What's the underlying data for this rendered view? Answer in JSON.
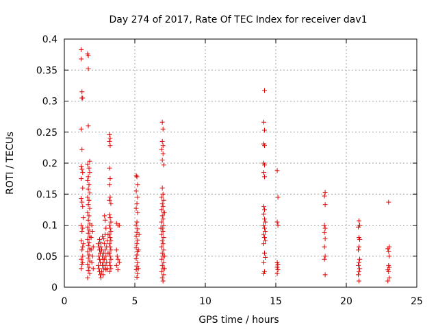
{
  "chart_data": {
    "type": "scatter",
    "title": "Day 274 of 2017, Rate Of TEC Index for receiver dav1",
    "xlabel": "GPS time / hours",
    "ylabel": "ROTI / TECUs",
    "xlim": [
      0,
      25
    ],
    "ylim": [
      0,
      0.4
    ],
    "xticks": [
      0,
      5,
      10,
      15,
      20,
      25
    ],
    "xtick_labels": [
      "0",
      "5",
      "10",
      "15",
      "20",
      "25"
    ],
    "yticks": [
      0,
      0.05,
      0.1,
      0.15,
      0.2,
      0.25,
      0.3,
      0.35,
      0.4
    ],
    "ytick_labels": [
      "0",
      "0.05",
      "0.1",
      "0.15",
      "0.2",
      "0.25",
      "0.3",
      "0.35",
      "0.4"
    ],
    "grid": true,
    "marker": "+",
    "color": "#e00000",
    "series": [
      {
        "points": [
          [
            1.2,
            0.383
          ],
          [
            1.2,
            0.368
          ],
          [
            1.25,
            0.315
          ],
          [
            1.25,
            0.305
          ],
          [
            1.3,
            0.305
          ],
          [
            1.2,
            0.255
          ],
          [
            1.25,
            0.222
          ],
          [
            1.2,
            0.195
          ],
          [
            1.25,
            0.19
          ],
          [
            1.3,
            0.185
          ],
          [
            1.2,
            0.175
          ],
          [
            1.3,
            0.16
          ],
          [
            1.2,
            0.143
          ],
          [
            1.25,
            0.137
          ],
          [
            1.3,
            0.13
          ],
          [
            1.2,
            0.1
          ],
          [
            1.3,
            0.095
          ],
          [
            1.25,
            0.09
          ],
          [
            1.2,
            0.075
          ],
          [
            1.3,
            0.065
          ],
          [
            1.25,
            0.06
          ],
          [
            1.2,
            0.045
          ],
          [
            1.3,
            0.04
          ],
          [
            1.25,
            0.037
          ],
          [
            1.2,
            0.03
          ],
          [
            1.3,
            0.05
          ],
          [
            1.35,
            0.112
          ],
          [
            1.35,
            0.07
          ],
          [
            1.65,
            0.376
          ],
          [
            1.7,
            0.373
          ],
          [
            1.7,
            0.352
          ],
          [
            1.7,
            0.26
          ],
          [
            1.8,
            0.203
          ],
          [
            1.65,
            0.198
          ],
          [
            1.75,
            0.192
          ],
          [
            1.8,
            0.185
          ],
          [
            1.7,
            0.178
          ],
          [
            1.65,
            0.172
          ],
          [
            1.75,
            0.165
          ],
          [
            1.7,
            0.158
          ],
          [
            1.8,
            0.152
          ],
          [
            1.65,
            0.145
          ],
          [
            1.75,
            0.14
          ],
          [
            1.7,
            0.133
          ],
          [
            1.8,
            0.127
          ],
          [
            1.65,
            0.12
          ],
          [
            1.75,
            0.115
          ],
          [
            1.7,
            0.108
          ],
          [
            1.8,
            0.102
          ],
          [
            1.65,
            0.097
          ],
          [
            1.75,
            0.092
          ],
          [
            1.7,
            0.087
          ],
          [
            1.8,
            0.082
          ],
          [
            1.65,
            0.077
          ],
          [
            1.75,
            0.072
          ],
          [
            1.7,
            0.067
          ],
          [
            1.8,
            0.062
          ],
          [
            1.65,
            0.057
          ],
          [
            1.75,
            0.052
          ],
          [
            1.7,
            0.047
          ],
          [
            1.8,
            0.042
          ],
          [
            1.65,
            0.037
          ],
          [
            1.75,
            0.032
          ],
          [
            1.7,
            0.027
          ],
          [
            1.8,
            0.022
          ],
          [
            1.65,
            0.015
          ],
          [
            1.9,
            0.06
          ],
          [
            1.9,
            0.08
          ],
          [
            1.95,
            0.1
          ],
          [
            2.0,
            0.09
          ],
          [
            2.0,
            0.05
          ],
          [
            1.95,
            0.04
          ],
          [
            2.05,
            0.03
          ],
          [
            2.05,
            0.065
          ],
          [
            2.4,
            0.07
          ],
          [
            2.45,
            0.065
          ],
          [
            2.5,
            0.06
          ],
          [
            2.55,
            0.055
          ],
          [
            2.45,
            0.05
          ],
          [
            2.5,
            0.045
          ],
          [
            2.55,
            0.04
          ],
          [
            2.4,
            0.035
          ],
          [
            2.45,
            0.03
          ],
          [
            2.5,
            0.025
          ],
          [
            2.55,
            0.02
          ],
          [
            2.6,
            0.072
          ],
          [
            2.65,
            0.06
          ],
          [
            2.7,
            0.05
          ],
          [
            2.75,
            0.04
          ],
          [
            2.8,
            0.03
          ],
          [
            2.65,
            0.025
          ],
          [
            2.7,
            0.035
          ],
          [
            2.75,
            0.045
          ],
          [
            2.8,
            0.055
          ],
          [
            2.6,
            0.065
          ],
          [
            2.85,
            0.07
          ],
          [
            2.9,
            0.06
          ],
          [
            2.95,
            0.05
          ],
          [
            2.85,
            0.045
          ],
          [
            2.9,
            0.035
          ],
          [
            2.95,
            0.028
          ],
          [
            3.0,
            0.04
          ],
          [
            2.9,
            0.085
          ],
          [
            2.95,
            0.095
          ],
          [
            2.85,
            0.115
          ],
          [
            2.9,
            0.108
          ],
          [
            2.7,
            0.082
          ],
          [
            2.8,
            0.078
          ],
          [
            2.75,
            0.02
          ],
          [
            3.0,
            0.065
          ],
          [
            3.05,
            0.075
          ],
          [
            3.1,
            0.085
          ],
          [
            3.1,
            0.055
          ],
          [
            3.05,
            0.03
          ],
          [
            2.6,
            0.015
          ],
          [
            2.5,
            0.077
          ],
          [
            3.2,
            0.246
          ],
          [
            3.25,
            0.24
          ],
          [
            3.2,
            0.235
          ],
          [
            3.25,
            0.228
          ],
          [
            3.2,
            0.192
          ],
          [
            3.25,
            0.175
          ],
          [
            3.2,
            0.165
          ],
          [
            3.25,
            0.145
          ],
          [
            3.2,
            0.14
          ],
          [
            3.3,
            0.135
          ],
          [
            3.2,
            0.117
          ],
          [
            3.25,
            0.112
          ],
          [
            3.3,
            0.105
          ],
          [
            3.2,
            0.1
          ],
          [
            3.25,
            0.095
          ],
          [
            3.3,
            0.09
          ],
          [
            3.2,
            0.085
          ],
          [
            3.25,
            0.08
          ],
          [
            3.3,
            0.075
          ],
          [
            3.2,
            0.07
          ],
          [
            3.25,
            0.065
          ],
          [
            3.3,
            0.06
          ],
          [
            3.2,
            0.055
          ],
          [
            3.25,
            0.05
          ],
          [
            3.3,
            0.045
          ],
          [
            3.2,
            0.04
          ],
          [
            3.25,
            0.035
          ],
          [
            3.3,
            0.03
          ],
          [
            3.2,
            0.025
          ],
          [
            3.7,
            0.103
          ],
          [
            3.8,
            0.1
          ],
          [
            3.9,
            0.1
          ],
          [
            3.7,
            0.06
          ],
          [
            3.75,
            0.05
          ],
          [
            3.8,
            0.045
          ],
          [
            3.7,
            0.035
          ],
          [
            3.8,
            0.028
          ],
          [
            3.9,
            0.04
          ],
          [
            5.1,
            0.18
          ],
          [
            5.15,
            0.178
          ],
          [
            5.2,
            0.165
          ],
          [
            5.1,
            0.155
          ],
          [
            5.2,
            0.145
          ],
          [
            5.15,
            0.135
          ],
          [
            5.1,
            0.127
          ],
          [
            5.2,
            0.12
          ],
          [
            5.15,
            0.105
          ],
          [
            5.1,
            0.1
          ],
          [
            5.2,
            0.094
          ],
          [
            5.15,
            0.088
          ],
          [
            5.1,
            0.082
          ],
          [
            5.2,
            0.076
          ],
          [
            5.15,
            0.07
          ],
          [
            5.1,
            0.064
          ],
          [
            5.2,
            0.058
          ],
          [
            5.15,
            0.052
          ],
          [
            5.1,
            0.046
          ],
          [
            5.2,
            0.04
          ],
          [
            5.15,
            0.034
          ],
          [
            5.1,
            0.028
          ],
          [
            5.2,
            0.022
          ],
          [
            5.15,
            0.016
          ],
          [
            5.25,
            0.03
          ],
          [
            5.25,
            0.06
          ],
          [
            5.3,
            0.085
          ],
          [
            6.95,
            0.266
          ],
          [
            7.0,
            0.255
          ],
          [
            6.95,
            0.235
          ],
          [
            7.0,
            0.228
          ],
          [
            6.9,
            0.222
          ],
          [
            7.0,
            0.215
          ],
          [
            6.95,
            0.205
          ],
          [
            7.05,
            0.197
          ],
          [
            6.95,
            0.16
          ],
          [
            7.0,
            0.15
          ],
          [
            6.9,
            0.145
          ],
          [
            7.05,
            0.14
          ],
          [
            6.95,
            0.135
          ],
          [
            7.0,
            0.13
          ],
          [
            6.9,
            0.125
          ],
          [
            7.05,
            0.12
          ],
          [
            6.95,
            0.115
          ],
          [
            7.0,
            0.11
          ],
          [
            6.9,
            0.105
          ],
          [
            7.05,
            0.1
          ],
          [
            6.95,
            0.095
          ],
          [
            7.0,
            0.09
          ],
          [
            6.9,
            0.085
          ],
          [
            7.05,
            0.08
          ],
          [
            6.95,
            0.075
          ],
          [
            7.0,
            0.07
          ],
          [
            6.9,
            0.065
          ],
          [
            7.05,
            0.06
          ],
          [
            6.95,
            0.055
          ],
          [
            7.0,
            0.05
          ],
          [
            6.9,
            0.045
          ],
          [
            7.05,
            0.04
          ],
          [
            6.95,
            0.035
          ],
          [
            7.0,
            0.03
          ],
          [
            6.9,
            0.025
          ],
          [
            7.05,
            0.02
          ],
          [
            6.95,
            0.015
          ],
          [
            7.0,
            0.01
          ],
          [
            7.1,
            0.05
          ],
          [
            7.1,
            0.03
          ],
          [
            7.1,
            0.12
          ],
          [
            6.85,
            0.095
          ],
          [
            14.2,
            0.317
          ],
          [
            14.15,
            0.266
          ],
          [
            14.2,
            0.253
          ],
          [
            14.15,
            0.231
          ],
          [
            14.2,
            0.228
          ],
          [
            14.15,
            0.2
          ],
          [
            14.2,
            0.197
          ],
          [
            14.15,
            0.185
          ],
          [
            14.2,
            0.178
          ],
          [
            14.15,
            0.13
          ],
          [
            14.2,
            0.125
          ],
          [
            14.15,
            0.118
          ],
          [
            14.2,
            0.11
          ],
          [
            14.25,
            0.105
          ],
          [
            14.15,
            0.1
          ],
          [
            14.2,
            0.095
          ],
          [
            14.25,
            0.09
          ],
          [
            14.15,
            0.085
          ],
          [
            14.2,
            0.08
          ],
          [
            14.25,
            0.075
          ],
          [
            14.15,
            0.07
          ],
          [
            14.2,
            0.055
          ],
          [
            14.25,
            0.048
          ],
          [
            14.15,
            0.04
          ],
          [
            14.2,
            0.025
          ],
          [
            14.15,
            0.022
          ],
          [
            15.1,
            0.188
          ],
          [
            15.15,
            0.145
          ],
          [
            15.1,
            0.105
          ],
          [
            15.15,
            0.1
          ],
          [
            15.1,
            0.04
          ],
          [
            15.15,
            0.037
          ],
          [
            15.1,
            0.032
          ],
          [
            15.15,
            0.028
          ],
          [
            15.1,
            0.022
          ],
          [
            18.5,
            0.153
          ],
          [
            18.45,
            0.147
          ],
          [
            18.5,
            0.133
          ],
          [
            18.45,
            0.1
          ],
          [
            18.5,
            0.095
          ],
          [
            18.45,
            0.088
          ],
          [
            18.5,
            0.078
          ],
          [
            18.45,
            0.065
          ],
          [
            18.5,
            0.05
          ],
          [
            18.45,
            0.045
          ],
          [
            18.5,
            0.02
          ],
          [
            20.9,
            0.107
          ],
          [
            20.95,
            0.1
          ],
          [
            20.85,
            0.097
          ],
          [
            20.9,
            0.08
          ],
          [
            20.95,
            0.077
          ],
          [
            20.9,
            0.065
          ],
          [
            20.85,
            0.06
          ],
          [
            20.95,
            0.045
          ],
          [
            20.9,
            0.04
          ],
          [
            20.85,
            0.035
          ],
          [
            20.95,
            0.03
          ],
          [
            20.9,
            0.025
          ],
          [
            20.85,
            0.02
          ],
          [
            20.9,
            0.01
          ],
          [
            23.0,
            0.137
          ],
          [
            23.05,
            0.065
          ],
          [
            22.95,
            0.062
          ],
          [
            23.0,
            0.058
          ],
          [
            23.05,
            0.05
          ],
          [
            23.0,
            0.035
          ],
          [
            23.05,
            0.032
          ],
          [
            22.95,
            0.028
          ],
          [
            23.0,
            0.025
          ],
          [
            23.05,
            0.015
          ],
          [
            22.95,
            0.01
          ]
        ]
      }
    ]
  }
}
